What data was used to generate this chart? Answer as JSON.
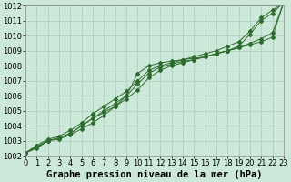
{
  "title": "Graphe pression niveau de la mer (hPa)",
  "xlabel_hours": [
    0,
    1,
    2,
    3,
    4,
    5,
    6,
    7,
    8,
    9,
    10,
    11,
    12,
    13,
    14,
    15,
    16,
    17,
    18,
    19,
    20,
    21,
    22,
    23
  ],
  "line1": [
    1002.2,
    1002.5,
    1003.0,
    1003.1,
    1003.4,
    1003.8,
    1004.2,
    1004.7,
    1005.3,
    1006.0,
    1007.5,
    1008.0,
    1008.2,
    1008.3,
    1008.4,
    1008.5,
    1008.6,
    1008.8,
    1009.0,
    1009.3,
    1010.1,
    1011.0,
    1011.5,
    1012.2
  ],
  "line2": [
    1002.2,
    1002.6,
    1003.0,
    1003.2,
    1003.5,
    1004.0,
    1004.5,
    1005.0,
    1005.5,
    1006.0,
    1006.8,
    1007.5,
    1007.9,
    1008.1,
    1008.3,
    1008.4,
    1008.6,
    1008.8,
    1009.0,
    1009.2,
    1009.5,
    1009.8,
    1010.2,
    1012.2
  ],
  "line3": [
    1002.2,
    1002.6,
    1003.0,
    1003.2,
    1003.5,
    1004.0,
    1004.5,
    1004.9,
    1005.3,
    1005.8,
    1006.4,
    1007.2,
    1007.7,
    1008.0,
    1008.2,
    1008.4,
    1008.6,
    1008.8,
    1009.0,
    1009.2,
    1009.4,
    1009.6,
    1009.9,
    1012.2
  ],
  "line4": [
    1002.2,
    1002.7,
    1003.1,
    1003.3,
    1003.7,
    1004.2,
    1004.8,
    1005.3,
    1005.8,
    1006.3,
    1007.0,
    1007.7,
    1008.0,
    1008.2,
    1008.4,
    1008.6,
    1008.8,
    1009.0,
    1009.3,
    1009.6,
    1010.3,
    1011.2,
    1011.7,
    1012.2
  ],
  "line_color": "#2d6a2d",
  "bg_color": "#cce8d8",
  "grid_color": "#aaccbb",
  "ylim": [
    1002,
    1012
  ],
  "yticks": [
    1002,
    1003,
    1004,
    1005,
    1006,
    1007,
    1008,
    1009,
    1010,
    1011,
    1012
  ],
  "xtick_labels": [
    "0",
    "1",
    "2",
    "3",
    "4",
    "5",
    "6",
    "7",
    "8",
    "9",
    "10",
    "11",
    "12",
    "13",
    "14",
    "15",
    "16",
    "17",
    "18",
    "19",
    "20",
    "21",
    "22",
    "23"
  ],
  "title_fontsize": 7.5,
  "tick_fontsize": 6
}
